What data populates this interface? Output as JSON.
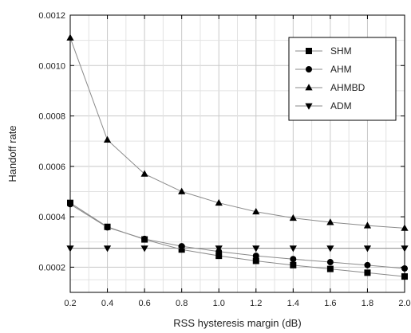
{
  "chart_data": {
    "type": "line",
    "title": "",
    "xlabel": "RSS hysteresis margin (dB)",
    "ylabel": "Handoff rate",
    "xlim": [
      0.2,
      2.0
    ],
    "ylim": [
      0.0001,
      0.0012
    ],
    "x_ticks": [
      0.2,
      0.4,
      0.6,
      0.8,
      1.0,
      1.2,
      1.4,
      1.6,
      1.8,
      2.0
    ],
    "x_tick_labels": [
      "0.2",
      "0.4",
      "0.6",
      "0.8",
      "1.0",
      "1.2",
      "1.4",
      "1.6",
      "1.8",
      "2.0"
    ],
    "y_ticks": [
      0.0002,
      0.0004,
      0.0006,
      0.0008,
      0.001,
      0.0012
    ],
    "y_tick_labels": [
      "0.0002",
      "0.0004",
      "0.0006",
      "0.0008",
      "0.0010",
      "0.0012"
    ],
    "grid": true,
    "legend_position": "top-right",
    "x": [
      0.2,
      0.4,
      0.6,
      0.8,
      1.0,
      1.2,
      1.4,
      1.6,
      1.8,
      2.0
    ],
    "series": [
      {
        "name": "SHM",
        "marker": "square",
        "values": [
          0.000455,
          0.00036,
          0.00031,
          0.00027,
          0.000245,
          0.000225,
          0.000208,
          0.000193,
          0.000178,
          0.000163
        ]
      },
      {
        "name": "AHM",
        "marker": "circle",
        "values": [
          0.00045,
          0.000358,
          0.000312,
          0.000283,
          0.000262,
          0.000245,
          0.000232,
          0.00022,
          0.000208,
          0.000195
        ]
      },
      {
        "name": "AHMBD",
        "marker": "triangle-up",
        "values": [
          0.00111,
          0.000705,
          0.00057,
          0.0005,
          0.000455,
          0.00042,
          0.000395,
          0.000378,
          0.000365,
          0.000355
        ]
      },
      {
        "name": "ADM",
        "marker": "triangle-down",
        "values": [
          0.000275,
          0.000275,
          0.000275,
          0.000275,
          0.000275,
          0.000275,
          0.000275,
          0.000275,
          0.000275,
          0.000275
        ]
      }
    ],
    "colors": {
      "line": "#8a8a8a",
      "marker": "#000000",
      "grid": "#c8c8c8",
      "axis": "#000000"
    }
  }
}
